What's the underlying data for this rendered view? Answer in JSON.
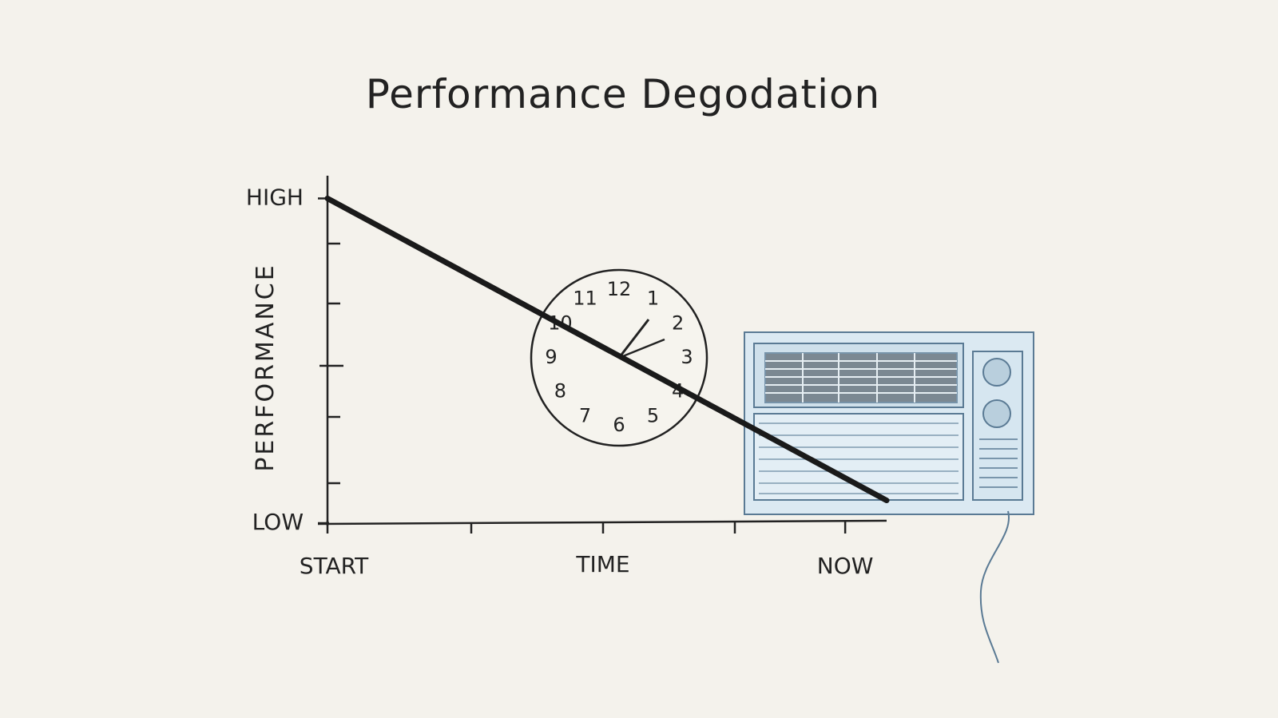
{
  "chart_data": {
    "type": "line",
    "title": "Performance Degodation",
    "xlabel": "TIME",
    "ylabel": "PERFORMANCE",
    "x": [
      0,
      1.08
    ],
    "series": [
      {
        "name": "Performance",
        "color": "#1a1a1a",
        "values": [
          1,
          0.07
        ]
      }
    ],
    "xlim": [
      0,
      1.08
    ],
    "xticks": [
      {
        "value": 0,
        "label": "START"
      },
      {
        "value": 1,
        "label": "NOW"
      }
    ],
    "ylim": [
      0,
      1.07
    ],
    "yticks": [
      {
        "value": 0,
        "label": "LOW"
      },
      {
        "value": 1,
        "label": "HIGH"
      }
    ],
    "grid": false
  },
  "illustration": {
    "clock_numerals": [
      "12",
      "1",
      "2",
      "3",
      "4",
      "5",
      "6",
      "7",
      "8",
      "9",
      "10",
      "11"
    ]
  }
}
